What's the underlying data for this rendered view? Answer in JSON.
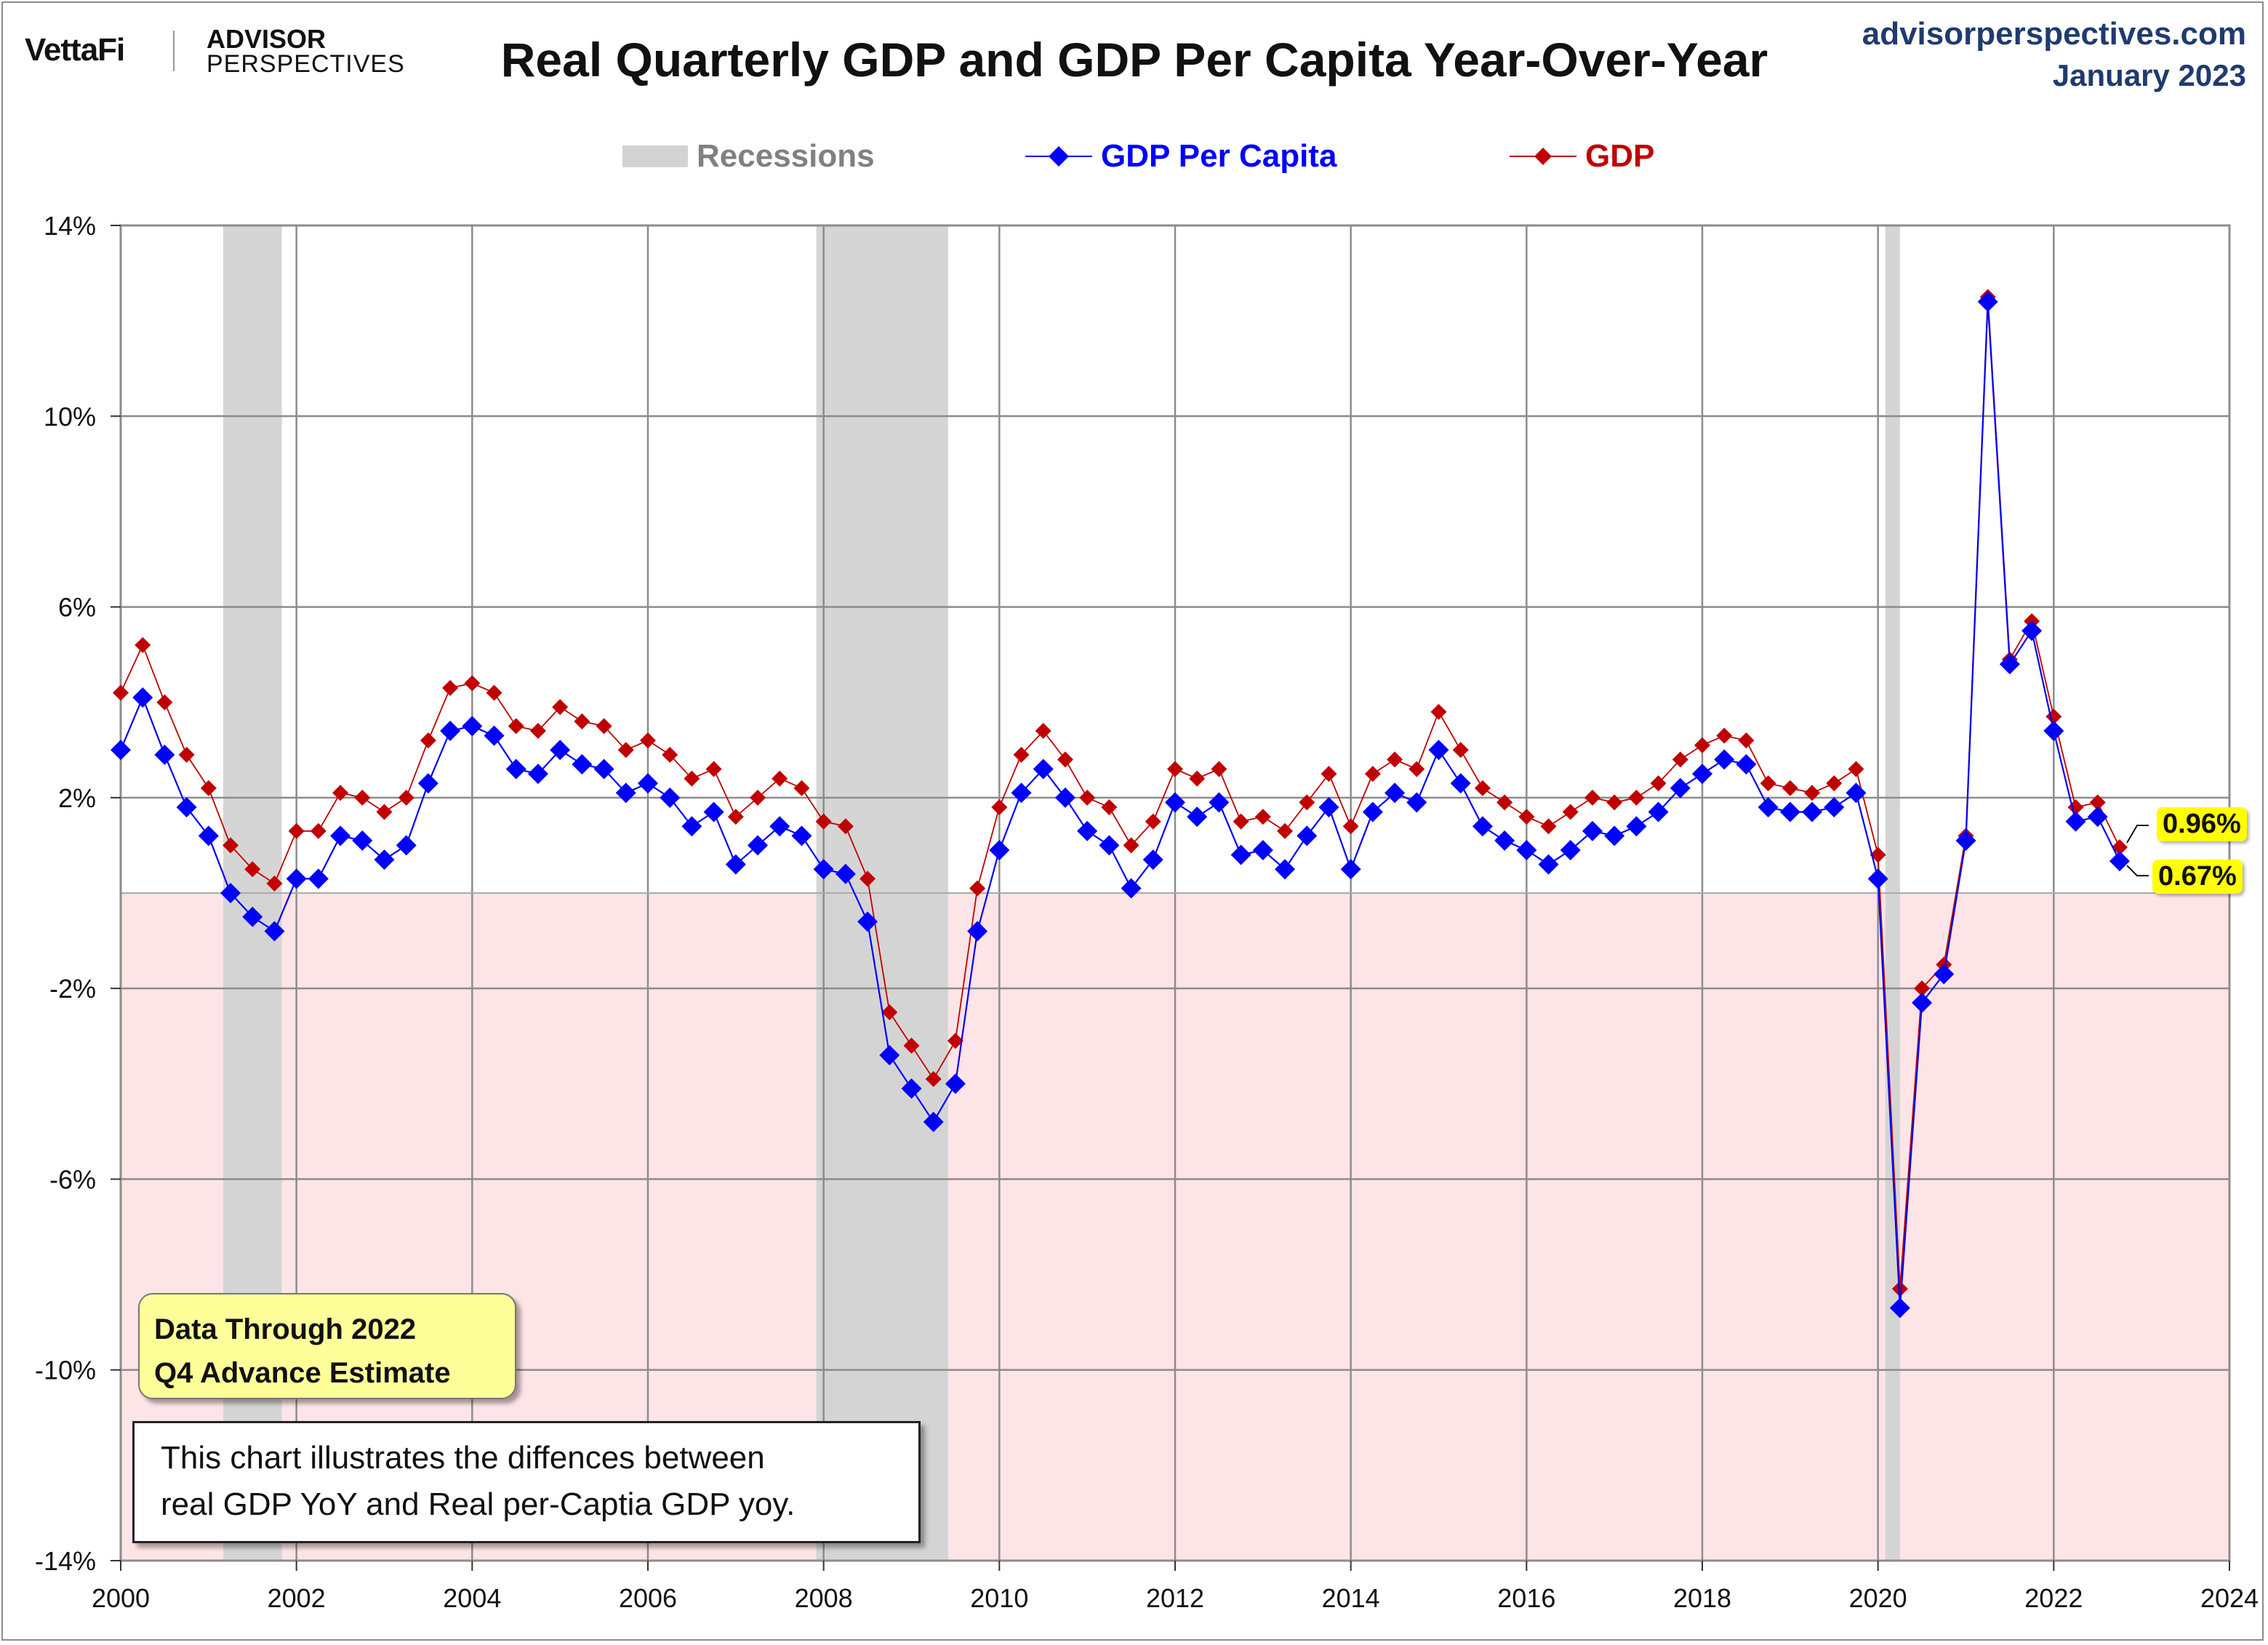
{
  "header": {
    "logo_vettafi": "VettaFi",
    "logo_advisor": "ADVISOR",
    "logo_perspectives": "PERSPECTIVES",
    "title": "Real Quarterly GDP and GDP Per Capita Year-Over-Year",
    "source_site": "advisorperspectives.com",
    "source_date": "January 2023"
  },
  "legend": {
    "recessions": "Recessions",
    "per_capita": "GDP Per Capita",
    "gdp": "GDP"
  },
  "notes": {
    "data_through_line1": "Data Through 2022",
    "data_through_line2": "Q4 Advance Estimate",
    "description_line1": "This chart illustrates the diffences between",
    "description_line2": "real GDP YoY and Real per-Captia GDP yoy."
  },
  "end_labels": {
    "gdp": "0.96%",
    "per_capita": "0.67%"
  },
  "colors": {
    "gdp": "#c00000",
    "per_capita": "#0000ff",
    "recession": "#d3d3d3",
    "negative_zone": "#fde4e6",
    "grid": "#8c8c8c",
    "label_bg": "#ffff00",
    "note_bg": "#ffff99",
    "source_text": "#1f3b6f"
  },
  "chart_data": {
    "type": "line",
    "title": "Real Quarterly GDP and GDP Per Capita Year-Over-Year",
    "xlim": [
      2000,
      2024
    ],
    "ylim": [
      -14,
      14
    ],
    "x_ticks": [
      2000,
      2002,
      2004,
      2006,
      2008,
      2010,
      2012,
      2014,
      2016,
      2018,
      2020,
      2022,
      2024
    ],
    "x_tick_labels": [
      "2000",
      "2002",
      "2004",
      "2006",
      "2008",
      "2010",
      "2012",
      "2014",
      "2016",
      "2018",
      "2020",
      "2022",
      "2024"
    ],
    "y_ticks": [
      14,
      10,
      6,
      2,
      -2,
      -6,
      -10,
      -14
    ],
    "y_tick_labels": [
      "14%",
      "10%",
      "6%",
      "2%",
      "-2%",
      "-6%",
      "-10%",
      "-14%"
    ],
    "grid": true,
    "legend_position": "top",
    "negative_region_shaded": true,
    "recessions": [
      {
        "start": "2001-03",
        "end": "2001-11"
      },
      {
        "start": "2007-12",
        "end": "2009-06"
      },
      {
        "start": "2020-02",
        "end": "2020-04"
      }
    ],
    "quarters": [
      "2000Q1",
      "2000Q2",
      "2000Q3",
      "2000Q4",
      "2001Q1",
      "2001Q2",
      "2001Q3",
      "2001Q4",
      "2002Q1",
      "2002Q2",
      "2002Q3",
      "2002Q4",
      "2003Q1",
      "2003Q2",
      "2003Q3",
      "2003Q4",
      "2004Q1",
      "2004Q2",
      "2004Q3",
      "2004Q4",
      "2005Q1",
      "2005Q2",
      "2005Q3",
      "2005Q4",
      "2006Q1",
      "2006Q2",
      "2006Q3",
      "2006Q4",
      "2007Q1",
      "2007Q2",
      "2007Q3",
      "2007Q4",
      "2008Q1",
      "2008Q2",
      "2008Q3",
      "2008Q4",
      "2009Q1",
      "2009Q2",
      "2009Q3",
      "2009Q4",
      "2010Q1",
      "2010Q2",
      "2010Q3",
      "2010Q4",
      "2011Q1",
      "2011Q2",
      "2011Q3",
      "2011Q4",
      "2012Q1",
      "2012Q2",
      "2012Q3",
      "2012Q4",
      "2013Q1",
      "2013Q2",
      "2013Q3",
      "2013Q4",
      "2014Q1",
      "2014Q2",
      "2014Q3",
      "2014Q4",
      "2015Q1",
      "2015Q2",
      "2015Q3",
      "2015Q4",
      "2016Q1",
      "2016Q2",
      "2016Q3",
      "2016Q4",
      "2017Q1",
      "2017Q2",
      "2017Q3",
      "2017Q4",
      "2018Q1",
      "2018Q2",
      "2018Q3",
      "2018Q4",
      "2019Q1",
      "2019Q2",
      "2019Q3",
      "2019Q4",
      "2020Q1",
      "2020Q2",
      "2020Q3",
      "2020Q4",
      "2021Q1",
      "2021Q2",
      "2021Q3",
      "2021Q4",
      "2022Q1",
      "2022Q2",
      "2022Q3",
      "2022Q4"
    ],
    "series": [
      {
        "name": "GDP",
        "values": [
          4.2,
          5.2,
          4.0,
          2.9,
          2.2,
          1.0,
          0.5,
          0.2,
          1.3,
          1.3,
          2.1,
          2.0,
          1.7,
          2.0,
          3.2,
          4.3,
          4.4,
          4.2,
          3.5,
          3.4,
          3.9,
          3.6,
          3.5,
          3.0,
          3.2,
          2.9,
          2.4,
          2.6,
          1.6,
          2.0,
          2.4,
          2.2,
          1.5,
          1.4,
          0.3,
          -2.5,
          -3.2,
          -3.9,
          -3.1,
          0.1,
          1.8,
          2.9,
          3.4,
          2.8,
          2.0,
          1.8,
          1.0,
          1.5,
          2.6,
          2.4,
          2.6,
          1.5,
          1.6,
          1.3,
          1.9,
          2.5,
          1.4,
          2.5,
          2.8,
          2.6,
          3.8,
          3.0,
          2.2,
          1.9,
          1.6,
          1.4,
          1.7,
          2.0,
          1.9,
          2.0,
          2.3,
          2.8,
          3.1,
          3.3,
          3.2,
          2.3,
          2.2,
          2.1,
          2.3,
          2.6,
          0.8,
          -8.3,
          -2.0,
          -1.5,
          1.2,
          12.5,
          4.9,
          5.7,
          3.7,
          1.8,
          1.9,
          0.96
        ]
      },
      {
        "name": "GDP Per Capita",
        "values": [
          3.0,
          4.1,
          2.9,
          1.8,
          1.2,
          0.0,
          -0.5,
          -0.8,
          0.3,
          0.3,
          1.2,
          1.1,
          0.7,
          1.0,
          2.3,
          3.4,
          3.5,
          3.3,
          2.6,
          2.5,
          3.0,
          2.7,
          2.6,
          2.1,
          2.3,
          2.0,
          1.4,
          1.7,
          0.6,
          1.0,
          1.4,
          1.2,
          0.5,
          0.4,
          -0.6,
          -3.4,
          -4.1,
          -4.8,
          -4.0,
          -0.8,
          0.9,
          2.1,
          2.6,
          2.0,
          1.3,
          1.0,
          0.1,
          0.7,
          1.9,
          1.6,
          1.9,
          0.8,
          0.9,
          0.5,
          1.2,
          1.8,
          0.5,
          1.7,
          2.1,
          1.9,
          3.0,
          2.3,
          1.4,
          1.1,
          0.9,
          0.6,
          0.9,
          1.3,
          1.2,
          1.4,
          1.7,
          2.2,
          2.5,
          2.8,
          2.7,
          1.8,
          1.7,
          1.7,
          1.8,
          2.1,
          0.3,
          -8.7,
          -2.3,
          -1.7,
          1.1,
          12.4,
          4.8,
          5.5,
          3.4,
          1.5,
          1.6,
          0.67
        ]
      }
    ]
  }
}
